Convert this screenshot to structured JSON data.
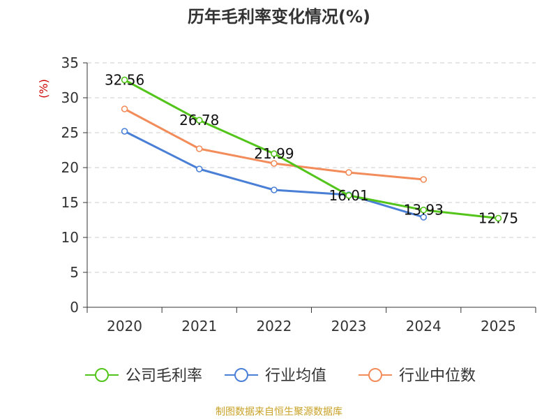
{
  "chart_data": {
    "type": "line",
    "title": "历年毛利率变化情况(%)",
    "ylabel": "(%)",
    "xlabel": "",
    "categories": [
      "2020",
      "2021",
      "2022",
      "2023",
      "2024",
      "2025"
    ],
    "ylim": [
      0,
      35
    ],
    "yticks": [
      0,
      5,
      10,
      15,
      20,
      25,
      30,
      35
    ],
    "grid": true,
    "legend_position": "bottom",
    "series": [
      {
        "name": "公司毛利率",
        "color": "#52c41a",
        "values": [
          32.56,
          26.78,
          21.99,
          16.01,
          13.93,
          12.75
        ],
        "labels": [
          "32.56",
          "26.78",
          "21.99",
          "16.01",
          "13.93",
          "12.75"
        ]
      },
      {
        "name": "行业均值",
        "color": "#4a7fd6",
        "values": [
          25.2,
          19.8,
          16.8,
          16.1,
          12.9,
          null
        ]
      },
      {
        "name": "行业中位数",
        "color": "#f28c5a",
        "values": [
          28.4,
          22.7,
          20.6,
          19.3,
          18.3,
          null
        ]
      }
    ]
  },
  "footer": {
    "source": "制图数据来自恒生聚源数据库"
  }
}
